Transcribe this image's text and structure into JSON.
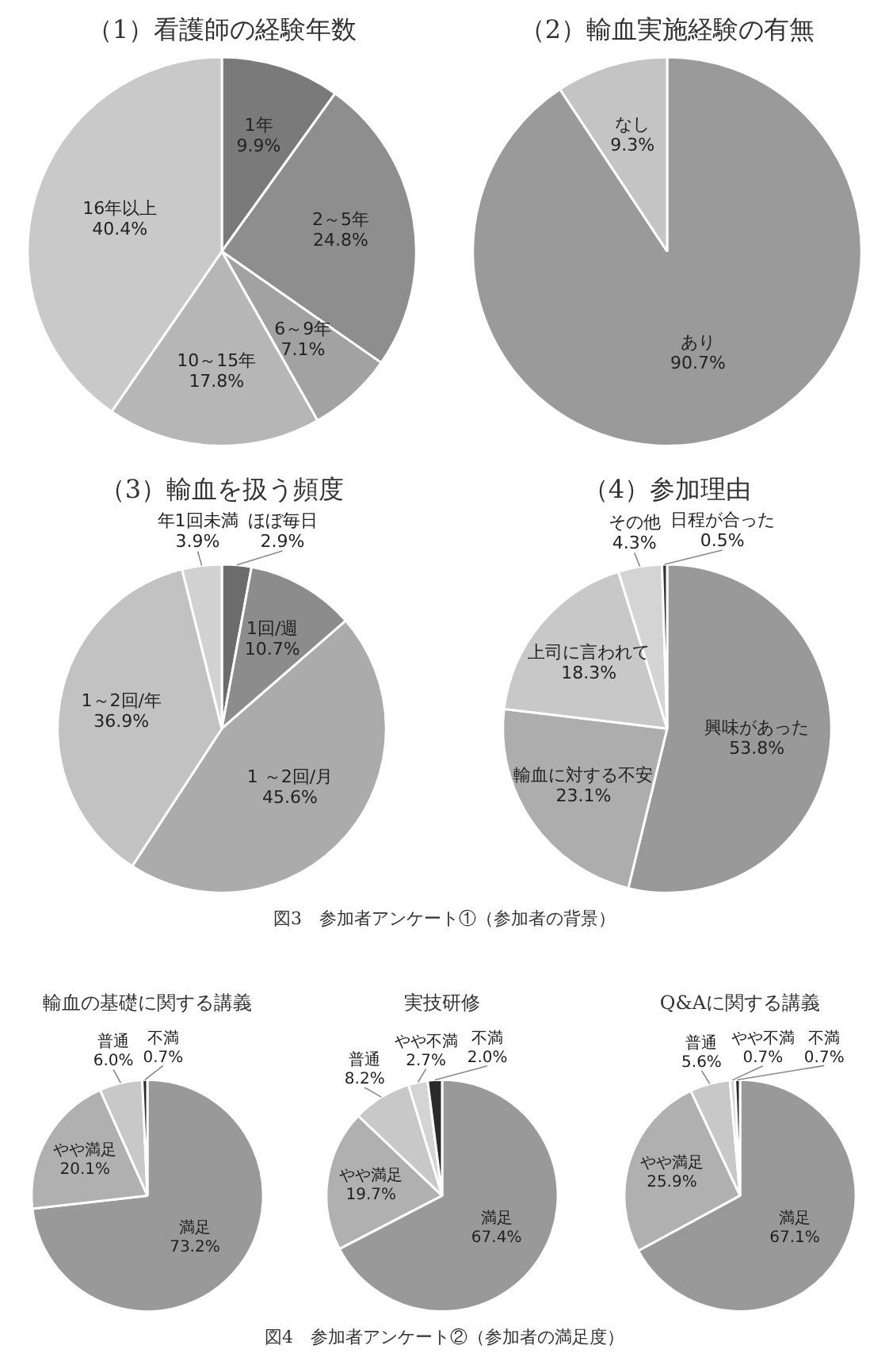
{
  "chart_data": [
    {
      "type": "pie",
      "title": "（1）看護師の経験年数",
      "categories": [
        "1年",
        "2～5年",
        "6～9年",
        "10～15年",
        "16年以上"
      ],
      "values": [
        9.9,
        24.8,
        7.1,
        17.8,
        40.4
      ],
      "colors": [
        "#7a7a7a",
        "#8e8e8e",
        "#a2a2a2",
        "#b6b6b6",
        "#c9c9c9"
      ],
      "value_labels": [
        "9.9%",
        "24.8%",
        "7.1%",
        "17.8%",
        "40.4%"
      ]
    },
    {
      "type": "pie",
      "title": "（2）輸血実施経験の有無",
      "categories": [
        "あり",
        "なし"
      ],
      "values": [
        90.7,
        9.3
      ],
      "colors": [
        "#9a9a9a",
        "#c4c4c4"
      ],
      "value_labels": [
        "90.7%",
        "9.3%"
      ]
    },
    {
      "type": "pie",
      "title": "（3）輸血を扱う頻度",
      "categories": [
        "ほぼ毎日",
        "1回/週",
        "1 ～2回/月",
        "1～2回/年",
        "年1回未満"
      ],
      "values": [
        2.9,
        10.7,
        45.6,
        36.9,
        3.9
      ],
      "colors": [
        "#6c6c6c",
        "#8c8c8c",
        "#ababab",
        "#c2c2c2",
        "#d2d2d2"
      ],
      "value_labels": [
        "2.9%",
        "10.7%",
        "45.6%",
        "36.9%",
        "3.9%"
      ]
    },
    {
      "type": "pie",
      "title": "（4）参加理由",
      "categories": [
        "興味があった",
        "輸血に対する不安",
        "上司に言われて",
        "その他",
        "日程が合った"
      ],
      "values": [
        53.8,
        23.1,
        18.3,
        4.3,
        0.5
      ],
      "colors": [
        "#999999",
        "#adadad",
        "#c8c8c8",
        "#d4d4d4",
        "#333333"
      ],
      "value_labels": [
        "53.8%",
        "23.1%",
        "18.3%",
        "4.3%",
        "0.5%"
      ],
      "annotations": [
        "図3　参加者アンケート①（参加者の背景）"
      ]
    },
    {
      "type": "pie",
      "title": "輸血の基礎に関する講義",
      "categories": [
        "満足",
        "やや満足",
        "普通",
        "不満"
      ],
      "values": [
        73.2,
        20.1,
        6.0,
        0.7
      ],
      "colors": [
        "#999999",
        "#b0b0b0",
        "#c8c8c8",
        "#2a2a2a"
      ],
      "value_labels": [
        "73.2%",
        "20.1%",
        "6.0%",
        "0.7%"
      ]
    },
    {
      "type": "pie",
      "title": "実技研修",
      "categories": [
        "満足",
        "やや満足",
        "普通",
        "やや不満",
        "不満"
      ],
      "values": [
        67.4,
        19.7,
        8.2,
        2.7,
        2.0
      ],
      "colors": [
        "#999999",
        "#b0b0b0",
        "#c8c8c8",
        "#d4d4d4",
        "#2a2a2a"
      ],
      "value_labels": [
        "67.4%",
        "19.7%",
        "8.2%",
        "2.7%",
        "2.0%"
      ]
    },
    {
      "type": "pie",
      "title": "Q&Aに関する講義",
      "categories": [
        "満足",
        "やや満足",
        "普通",
        "やや不満",
        "不満"
      ],
      "values": [
        67.1,
        25.9,
        5.6,
        0.7,
        0.7
      ],
      "colors": [
        "#999999",
        "#b0b0b0",
        "#c8c8c8",
        "#d4d4d4",
        "#2a2a2a"
      ],
      "value_labels": [
        "67.1%",
        "25.9%",
        "5.6%",
        "0.7%",
        "0.7%"
      ],
      "annotations": [
        "図4　参加者アンケート②（参加者の満足度）"
      ]
    }
  ]
}
